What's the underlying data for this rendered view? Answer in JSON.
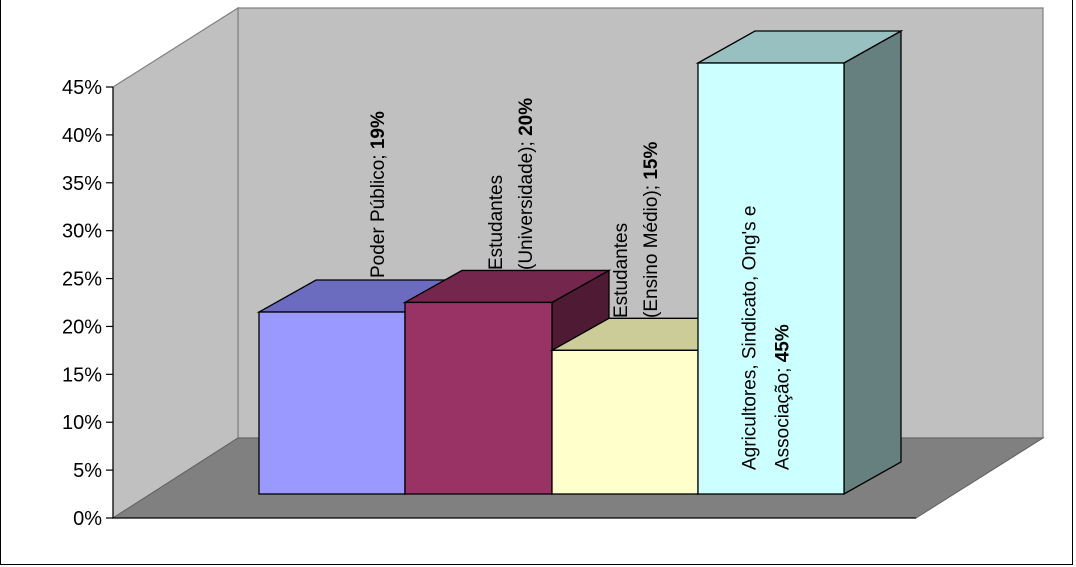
{
  "chart_data": {
    "type": "bar",
    "categories": [
      "Poder Público",
      "Estudantes (Universidade)",
      "Estudantes (Ensino Médio)",
      "Agricultores, Sindicato, Ong's e Associação"
    ],
    "values": [
      19,
      20,
      15,
      45
    ],
    "data_labels": [
      {
        "lines": [
          "Poder Público;"
        ],
        "value": "19%"
      },
      {
        "lines": [
          "Estudantes",
          "(Universidade);"
        ],
        "value": "20%"
      },
      {
        "lines": [
          "Estudantes",
          "(Ensino Médio);"
        ],
        "value": "15%"
      },
      {
        "lines": [
          "Agricultores, Sindicato, Ong's e",
          "Associação;"
        ],
        "value": "45%"
      }
    ],
    "colors": [
      {
        "front": "#9999ff",
        "top": "#6b6bc0",
        "side": "#4d4d8c"
      },
      {
        "front": "#993366",
        "top": "#74264c",
        "side": "#4f1a33"
      },
      {
        "front": "#ffffcc",
        "top": "#cccc99",
        "side": "#a6a680"
      },
      {
        "front": "#ccffff",
        "top": "#99c0c0",
        "side": "#668080"
      }
    ],
    "y_ticks": [
      "0%",
      "5%",
      "10%",
      "15%",
      "20%",
      "25%",
      "30%",
      "35%",
      "40%",
      "45%"
    ],
    "ylim": [
      0,
      45
    ],
    "title": "",
    "xlabel": "",
    "ylabel": "",
    "grid": false,
    "legend": "none",
    "style": "3d-bar",
    "wall_color": "#c0c0c0",
    "floor_color": "#808080"
  }
}
